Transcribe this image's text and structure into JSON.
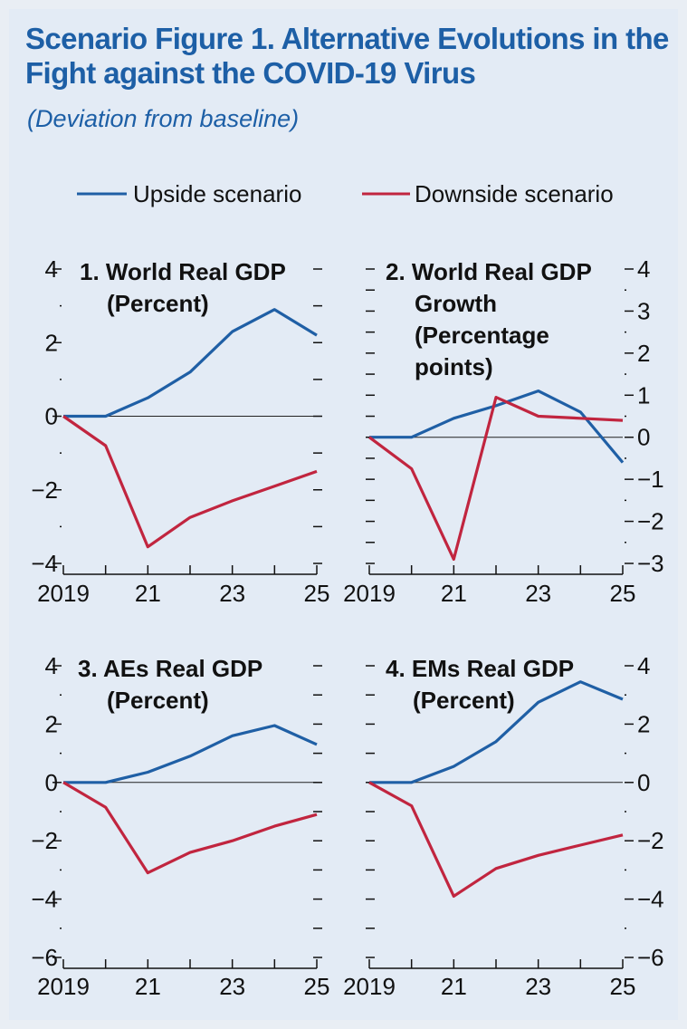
{
  "title": "Scenario Figure 1.  Alternative Evolutions in the Fight against the COVID-19 Virus",
  "subtitle": "(Deviation from baseline)",
  "colors": {
    "upside": "#1f5fa5",
    "downside": "#c1253f",
    "background": "#e3ebf5",
    "title": "#1d5fa6"
  },
  "legend": {
    "position": "top",
    "items": [
      {
        "label": "Upside scenario",
        "series": "upside"
      },
      {
        "label": "Downside scenario",
        "series": "downside"
      }
    ]
  },
  "chart_data": [
    {
      "type": "line",
      "title_lines": [
        "1. World Real GDP",
        "(Percent)"
      ],
      "x": [
        2019,
        2020,
        2021,
        2022,
        2023,
        2024,
        2025
      ],
      "x_tick_labels": [
        "2019",
        "21",
        "23",
        "25"
      ],
      "ylim": [
        -4,
        4
      ],
      "y_tick_labels": [
        "4",
        "2",
        "0",
        "−2",
        "−4"
      ],
      "y_axis": "left",
      "series": [
        {
          "name": "Upside scenario",
          "key": "upside",
          "values": [
            0,
            0,
            0.5,
            1.2,
            2.3,
            2.9,
            2.2
          ]
        },
        {
          "name": "Downside scenario",
          "key": "downside",
          "values": [
            0,
            -0.8,
            -3.55,
            -2.75,
            -2.3,
            -1.9,
            -1.5
          ]
        }
      ]
    },
    {
      "type": "line",
      "title_lines": [
        "2. World Real GDP",
        "Growth",
        "(Percentage",
        "points)"
      ],
      "x": [
        2019,
        2020,
        2021,
        2022,
        2023,
        2024,
        2025
      ],
      "x_tick_labels": [
        "2019",
        "21",
        "23",
        "25"
      ],
      "ylim": [
        -3,
        4
      ],
      "y_tick_labels": [
        "4",
        "3",
        "2",
        "1",
        "0",
        "−1",
        "−2",
        "−3"
      ],
      "y_axis": "right",
      "series": [
        {
          "name": "Upside scenario",
          "key": "upside",
          "values": [
            0,
            0,
            0.45,
            0.75,
            1.1,
            0.6,
            -0.6
          ]
        },
        {
          "name": "Downside scenario",
          "key": "downside",
          "values": [
            0,
            -0.75,
            -2.9,
            0.95,
            0.5,
            0.45,
            0.4
          ]
        }
      ]
    },
    {
      "type": "line",
      "title_lines": [
        "3. AEs Real GDP",
        "(Percent)"
      ],
      "x": [
        2019,
        2020,
        2021,
        2022,
        2023,
        2024,
        2025
      ],
      "x_tick_labels": [
        "2019",
        "21",
        "23",
        "25"
      ],
      "ylim": [
        -6,
        4
      ],
      "y_tick_labels": [
        "4",
        "2",
        "0",
        "−2",
        "−4",
        "−6"
      ],
      "y_axis": "left",
      "series": [
        {
          "name": "Upside scenario",
          "key": "upside",
          "values": [
            0,
            0,
            0.35,
            0.9,
            1.6,
            1.95,
            1.3
          ]
        },
        {
          "name": "Downside scenario",
          "key": "downside",
          "values": [
            0,
            -0.85,
            -3.1,
            -2.4,
            -2.0,
            -1.5,
            -1.1
          ]
        }
      ]
    },
    {
      "type": "line",
      "title_lines": [
        "4. EMs Real GDP",
        "(Percent)"
      ],
      "x": [
        2019,
        2020,
        2021,
        2022,
        2023,
        2024,
        2025
      ],
      "x_tick_labels": [
        "2019",
        "21",
        "23",
        "25"
      ],
      "ylim": [
        -6,
        4
      ],
      "y_tick_labels": [
        "4",
        "2",
        "0",
        "−2",
        "−4",
        "−6"
      ],
      "y_axis": "right",
      "series": [
        {
          "name": "Upside scenario",
          "key": "upside",
          "values": [
            0,
            0,
            0.55,
            1.4,
            2.75,
            3.45,
            2.85
          ]
        },
        {
          "name": "Downside scenario",
          "key": "downside",
          "values": [
            0,
            -0.8,
            -3.9,
            -2.95,
            -2.5,
            -2.15,
            -1.8
          ]
        }
      ]
    }
  ]
}
